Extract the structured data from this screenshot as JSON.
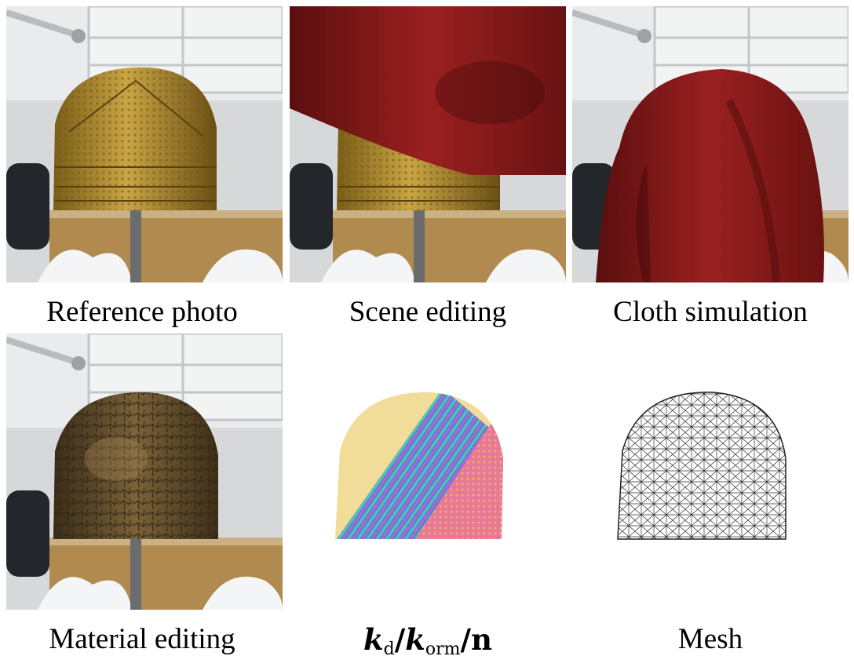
{
  "figure": {
    "captions": {
      "reference": "Reference photo",
      "scene": "Scene editing",
      "cloth": "Cloth simulation",
      "material": "Material editing",
      "maps_k": "k",
      "maps_d": "d",
      "maps_sep1": "/",
      "maps_orm": "orm",
      "maps_sep2": "/",
      "maps_n": "n",
      "mesh": "Mesh"
    },
    "colors": {
      "gold": "#b8932e",
      "cloth_red": "#8b1a1a",
      "corroded_bronze": "#5e4a2a",
      "kd_yellow": "#f2dc9a",
      "orm_pink": "#e8789a",
      "normal_blue": "#5f7fd8"
    }
  }
}
